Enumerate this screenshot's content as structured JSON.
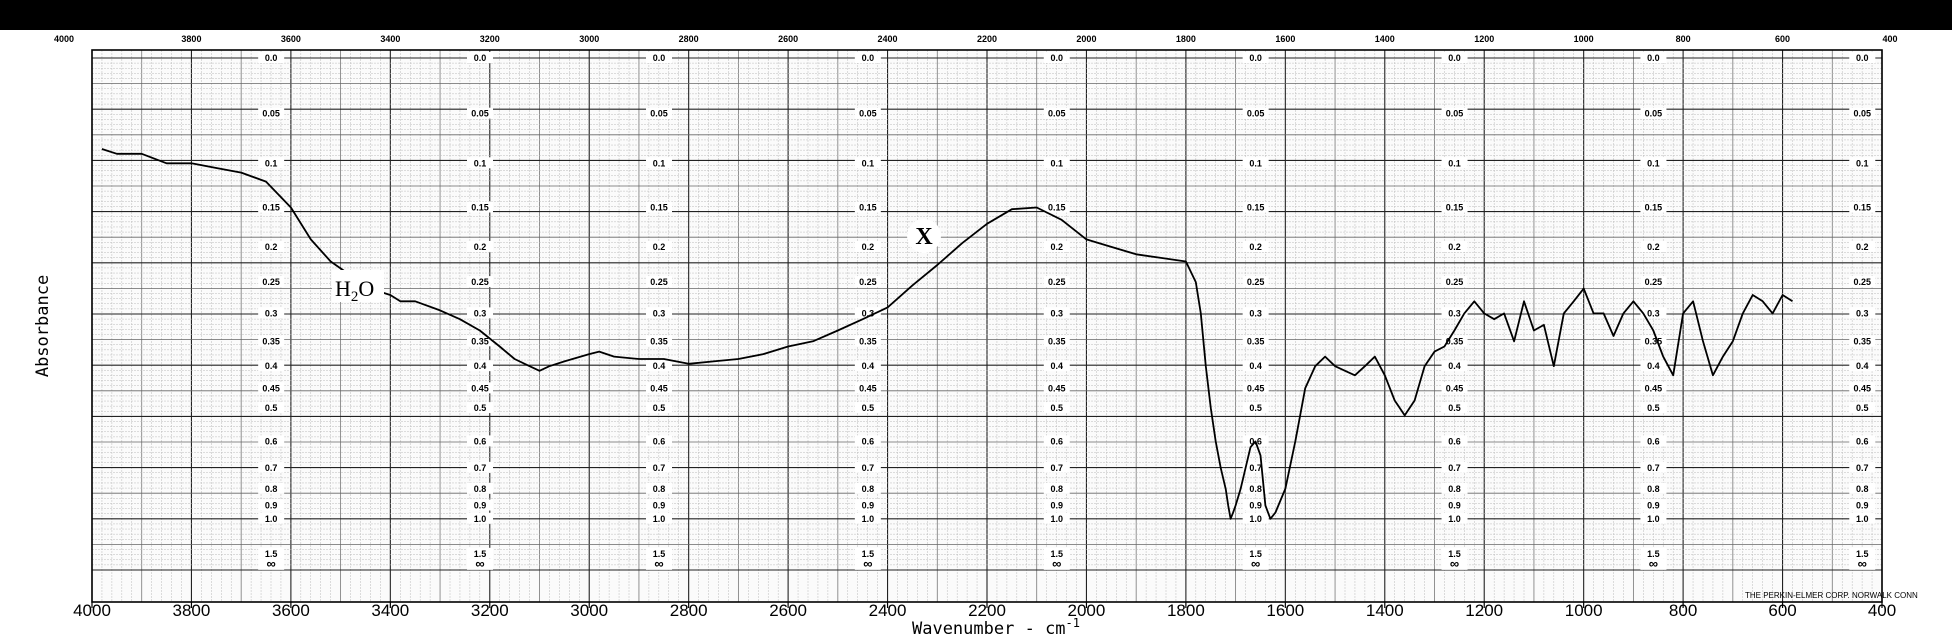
{
  "chart_data": {
    "type": "line",
    "xlabel": "Wavenumber",
    "xlabel_unit": "cm",
    "xlabel_exponent": "-1",
    "ylabel": "Absorbance",
    "x_reversed": true,
    "xlim": [
      4000,
      400
    ],
    "x_ticks_bottom": [
      4000,
      3800,
      3600,
      3400,
      3200,
      3000,
      2800,
      2600,
      2400,
      2200,
      2000,
      1800,
      1600,
      1400,
      1200,
      1000,
      800,
      600,
      400
    ],
    "x_ticks_top": [
      "4000",
      "3800",
      "3600",
      "3400",
      "3200",
      "3000",
      "2800",
      "2600",
      "2400",
      "2200",
      "2000",
      "1800",
      "1600",
      "1400",
      "1200",
      "1000",
      "800",
      "600",
      "400"
    ],
    "absorbance_scale": [
      "0.0",
      "0.05",
      "0.1",
      "0.15",
      "0.2",
      "0.25",
      "0.3",
      "0.35",
      "0.4",
      "0.45",
      "0.5",
      "0.6",
      "0.7",
      "0.8",
      "0.9",
      "1.0",
      "1.5",
      "∞"
    ],
    "grid": true,
    "annotations": {
      "x_label": "X",
      "water_label": "H",
      "water_subscript": "2",
      "water_tail": "O"
    },
    "imprint": "THE PERKIN-ELMER CORP. NORWALK CONN",
    "series": [
      {
        "x": [
          3980,
          3950,
          3900,
          3850,
          3800,
          3750,
          3700,
          3650,
          3600,
          3560,
          3520,
          3480,
          3450,
          3420,
          3400,
          3380,
          3350,
          3300,
          3260,
          3220,
          3180,
          3150,
          3120,
          3100,
          3080,
          3050,
          3000,
          2980,
          2950,
          2900,
          2850,
          2800,
          2750,
          2700,
          2650,
          2600,
          2550,
          2500,
          2450,
          2400,
          2350,
          2300,
          2250,
          2200,
          2150,
          2100,
          2050,
          2000,
          1950,
          1900,
          1850,
          1800,
          1780,
          1770,
          1760,
          1750,
          1740,
          1730,
          1720,
          1715,
          1710,
          1705,
          1700,
          1690,
          1680,
          1670,
          1660,
          1650,
          1640,
          1630,
          1620,
          1600,
          1580,
          1560,
          1540,
          1520,
          1500,
          1480,
          1460,
          1440,
          1420,
          1400,
          1380,
          1360,
          1340,
          1320,
          1300,
          1280,
          1260,
          1240,
          1220,
          1200,
          1180,
          1160,
          1140,
          1120,
          1100,
          1080,
          1060,
          1040,
          1020,
          1000,
          980,
          960,
          940,
          920,
          900,
          880,
          860,
          840,
          820,
          800,
          780,
          760,
          740,
          720,
          700,
          680,
          660,
          640,
          620,
          600,
          580
        ],
        "y": [
          0.085,
          0.09,
          0.09,
          0.1,
          0.1,
          0.105,
          0.11,
          0.12,
          0.15,
          0.19,
          0.22,
          0.24,
          0.255,
          0.265,
          0.27,
          0.28,
          0.28,
          0.295,
          0.31,
          0.33,
          0.36,
          0.385,
          0.4,
          0.41,
          0.4,
          0.39,
          0.375,
          0.37,
          0.38,
          0.385,
          0.385,
          0.395,
          0.39,
          0.385,
          0.375,
          0.36,
          0.35,
          0.33,
          0.31,
          0.29,
          0.255,
          0.225,
          0.195,
          0.17,
          0.152,
          0.15,
          0.165,
          0.19,
          0.2,
          0.21,
          0.215,
          0.22,
          0.25,
          0.3,
          0.4,
          0.5,
          0.6,
          0.7,
          0.8,
          0.9,
          1.0,
          0.95,
          0.9,
          0.8,
          0.7,
          0.62,
          0.6,
          0.65,
          0.9,
          1.0,
          0.95,
          0.8,
          0.6,
          0.45,
          0.4,
          0.38,
          0.4,
          0.41,
          0.42,
          0.4,
          0.38,
          0.42,
          0.48,
          0.52,
          0.48,
          0.4,
          0.37,
          0.36,
          0.33,
          0.3,
          0.28,
          0.3,
          0.31,
          0.3,
          0.35,
          0.28,
          0.33,
          0.32,
          0.4,
          0.3,
          0.28,
          0.26,
          0.3,
          0.3,
          0.34,
          0.3,
          0.28,
          0.3,
          0.33,
          0.38,
          0.42,
          0.3,
          0.28,
          0.35,
          0.42,
          0.38,
          0.35,
          0.3,
          0.27,
          0.28,
          0.3,
          0.27,
          0.28
        ]
      }
    ]
  }
}
